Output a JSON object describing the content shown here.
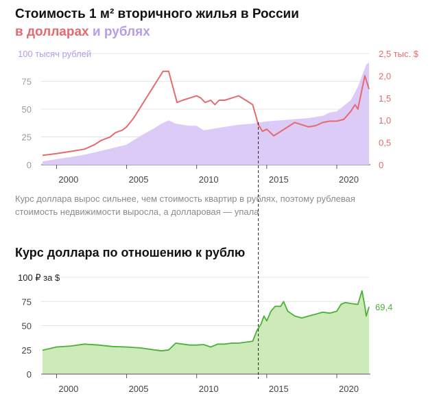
{
  "header": {
    "title": "Стоимость 1 м² вторичного жилья в России",
    "subtitle_usd": "в долларах",
    "subtitle_and": " и ",
    "subtitle_rub": "рублях"
  },
  "caption": "Курс доллара вырос сильнее, чем стоимость квартир в рублях, поэтому рублевая стоимость недвижимости выросла, а долларовая — упала",
  "colors": {
    "rub_fill": "#dccbf7",
    "usd_line": "#e46a6e",
    "fx_fill": "#cdeab9",
    "fx_line": "#4caf3a",
    "grid": "#e4e4e4"
  },
  "chart_data": [
    {
      "type": "area",
      "title": "Стоимость 1 м² вторичного жилья в России",
      "y_left_label": "100 тысяч рублей",
      "y_left_ticks": [
        "0",
        "25",
        "50",
        "75",
        "100 тысяч рублей"
      ],
      "y_left_lim": [
        0,
        100
      ],
      "y_right_label": "2,5 тыс. $",
      "y_right_ticks": [
        "0",
        "0,5",
        "1,0",
        "1,5",
        "2,0",
        "2,5 тыс. $"
      ],
      "y_right_lim": [
        0,
        2.5
      ],
      "x_ticks": [
        "2000",
        "2005",
        "2010",
        "2015",
        "2020"
      ],
      "xlim": [
        1999,
        2022.3
      ],
      "grid": true,
      "series": [
        {
          "name": "рублях",
          "type": "area",
          "unit": "тыс. руб.",
          "points": [
            [
              1999,
              3
            ],
            [
              2000,
              5
            ],
            [
              2001,
              7
            ],
            [
              2002,
              9
            ],
            [
              2003,
              12
            ],
            [
              2004,
              15
            ],
            [
              2005,
              18
            ],
            [
              2006,
              26
            ],
            [
              2007,
              33
            ],
            [
              2007.5,
              37
            ],
            [
              2008,
              40
            ],
            [
              2008.5,
              37
            ],
            [
              2009,
              36
            ],
            [
              2009.5,
              35
            ],
            [
              2010,
              35
            ],
            [
              2010.25,
              33
            ],
            [
              2010.5,
              31
            ],
            [
              2011,
              32
            ],
            [
              2012,
              34
            ],
            [
              2013,
              36
            ],
            [
              2014,
              37
            ],
            [
              2014.5,
              38
            ],
            [
              2015,
              39
            ],
            [
              2016,
              40
            ],
            [
              2017,
              41
            ],
            [
              2018,
              42
            ],
            [
              2019,
              44
            ],
            [
              2019.5,
              47
            ],
            [
              2020,
              48
            ],
            [
              2020.5,
              53
            ],
            [
              2021,
              58
            ],
            [
              2021.5,
              70
            ],
            [
              2021.8,
              80
            ],
            [
              2022.1,
              90
            ],
            [
              2022.3,
              92
            ]
          ]
        },
        {
          "name": "долларах",
          "type": "line",
          "unit": "тыс. $",
          "points": [
            [
              1999,
              0.21
            ],
            [
              2000,
              0.25
            ],
            [
              2001,
              0.3
            ],
            [
              2002,
              0.35
            ],
            [
              2002.7,
              0.45
            ],
            [
              2003.2,
              0.55
            ],
            [
              2003.8,
              0.62
            ],
            [
              2004.2,
              0.72
            ],
            [
              2004.7,
              0.78
            ],
            [
              2005,
              0.85
            ],
            [
              2005.5,
              1.05
            ],
            [
              2006,
              1.3
            ],
            [
              2006.5,
              1.55
            ],
            [
              2007,
              1.8
            ],
            [
              2007.3,
              1.95
            ],
            [
              2007.6,
              2.1
            ],
            [
              2008,
              2.1
            ],
            [
              2008.3,
              1.75
            ],
            [
              2008.6,
              1.4
            ],
            [
              2009,
              1.45
            ],
            [
              2009.5,
              1.5
            ],
            [
              2010,
              1.55
            ],
            [
              2010.3,
              1.5
            ],
            [
              2010.6,
              1.4
            ],
            [
              2011,
              1.45
            ],
            [
              2011.3,
              1.35
            ],
            [
              2011.6,
              1.45
            ],
            [
              2012,
              1.45
            ],
            [
              2012.5,
              1.5
            ],
            [
              2013,
              1.55
            ],
            [
              2013.5,
              1.45
            ],
            [
              2014,
              1.35
            ],
            [
              2014.4,
              0.9
            ],
            [
              2014.7,
              0.75
            ],
            [
              2015,
              0.8
            ],
            [
              2015.5,
              0.65
            ],
            [
              2016,
              0.75
            ],
            [
              2016.5,
              0.85
            ],
            [
              2017,
              0.95
            ],
            [
              2017.5,
              0.9
            ],
            [
              2018,
              0.85
            ],
            [
              2018.5,
              0.88
            ],
            [
              2019,
              0.95
            ],
            [
              2019.5,
              0.98
            ],
            [
              2020,
              0.98
            ],
            [
              2020.5,
              1.02
            ],
            [
              2021,
              1.2
            ],
            [
              2021.3,
              1.35
            ],
            [
              2021.5,
              1.25
            ],
            [
              2021.8,
              1.7
            ],
            [
              2022,
              2.0
            ],
            [
              2022.3,
              1.7
            ]
          ]
        }
      ]
    },
    {
      "type": "area",
      "title": "Курс доллара по отношению к рублю",
      "y_label": "100 ₽ за $",
      "y_ticks": [
        "0",
        "25",
        "50",
        "75",
        "100 ₽ за $"
      ],
      "ylim": [
        0,
        100
      ],
      "x_ticks": [
        "2000",
        "2005",
        "2010",
        "2015",
        "2020"
      ],
      "xlim": [
        1999,
        2022.3
      ],
      "grid": true,
      "end_label": "69,4",
      "series": [
        {
          "name": "Курс доллара",
          "type": "area",
          "unit": "₽ за $",
          "points": [
            [
              1999,
              24.6
            ],
            [
              2000,
              28
            ],
            [
              2001,
              29
            ],
            [
              2002,
              31
            ],
            [
              2003,
              30
            ],
            [
              2004,
              28.5
            ],
            [
              2005,
              28
            ],
            [
              2006,
              27
            ],
            [
              2007,
              25
            ],
            [
              2007.5,
              24
            ],
            [
              2008,
              25
            ],
            [
              2008.5,
              32
            ],
            [
              2009,
              31
            ],
            [
              2009.5,
              30
            ],
            [
              2010,
              30
            ],
            [
              2010.5,
              30.5
            ],
            [
              2011,
              28
            ],
            [
              2011.5,
              31
            ],
            [
              2012,
              31
            ],
            [
              2012.5,
              32
            ],
            [
              2013,
              32
            ],
            [
              2013.5,
              33
            ],
            [
              2014,
              34
            ],
            [
              2014.3,
              45
            ],
            [
              2014.6,
              52
            ],
            [
              2014.8,
              60
            ],
            [
              2015,
              55
            ],
            [
              2015.3,
              65
            ],
            [
              2015.6,
              70
            ],
            [
              2016,
              70
            ],
            [
              2016.2,
              75
            ],
            [
              2016.5,
              65
            ],
            [
              2017,
              60
            ],
            [
              2017.5,
              58
            ],
            [
              2018,
              60
            ],
            [
              2018.5,
              62
            ],
            [
              2019,
              64
            ],
            [
              2019.5,
              63
            ],
            [
              2020,
              65
            ],
            [
              2020.3,
              72
            ],
            [
              2020.6,
              74
            ],
            [
              2021,
              73
            ],
            [
              2021.5,
              72
            ],
            [
              2021.8,
              86
            ],
            [
              2022,
              70
            ],
            [
              2022.1,
              60
            ],
            [
              2022.3,
              69.4
            ]
          ]
        }
      ]
    }
  ]
}
